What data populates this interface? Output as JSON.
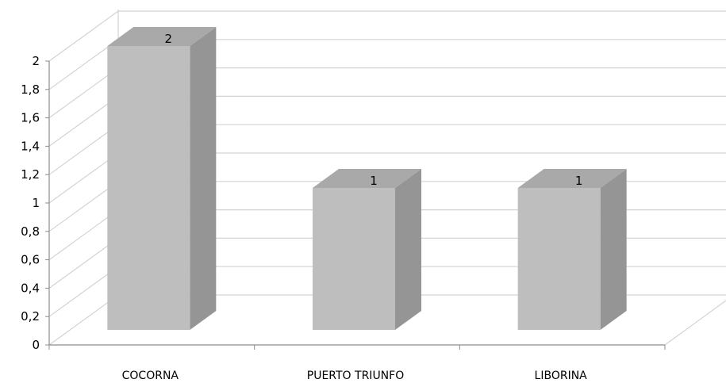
{
  "chart_data": {
    "type": "bar",
    "style": "3d-column",
    "categories": [
      "COCORNA",
      "PUERTO TRIUNFO",
      "LIBORINA"
    ],
    "values": [
      2,
      1,
      1
    ],
    "data_labels": [
      "2",
      "1",
      "1"
    ],
    "y_ticks": [
      "0",
      "0,2",
      "0,4",
      "0,6",
      "0,8",
      "1",
      "1,2",
      "1,4",
      "1,6",
      "1,8",
      "2"
    ],
    "ylim": [
      0,
      2
    ],
    "grid": true,
    "legend": "none",
    "colors": {
      "bar_front": "#bebebe",
      "bar_side": "#959595",
      "bar_top": "#a9a9a9",
      "gridline": "#d3d3d3",
      "axis": "#8c8c8c"
    }
  }
}
